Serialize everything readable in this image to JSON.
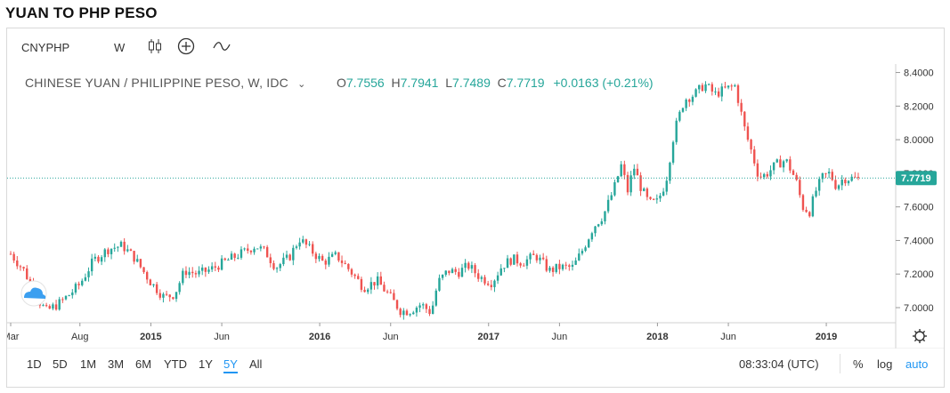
{
  "page_title": "YUAN TO PHP PESO",
  "toolbar": {
    "symbol": "CNYPHP",
    "interval": "W",
    "icons": [
      "candles-icon",
      "compare-add-icon",
      "indicators-icon"
    ]
  },
  "legend": {
    "name": "CHINESE YUAN / PHILIPPINE PESO, W, IDC",
    "o_label": "O",
    "o": "7.7556",
    "h_label": "H",
    "h": "7.7941",
    "l_label": "L",
    "l": "7.7489",
    "c_label": "C",
    "c": "7.7719",
    "change": "+0.0163 (+0.21%)"
  },
  "price_tag": "7.7719",
  "bottom": {
    "ranges": [
      "1D",
      "5D",
      "1M",
      "3M",
      "6M",
      "YTD",
      "1Y",
      "5Y",
      "All"
    ],
    "active_range": "5Y",
    "clock": "08:33:04 (UTC)",
    "options": [
      "%",
      "log",
      "auto"
    ],
    "active_option": "auto"
  },
  "colors": {
    "up": "#26a69a",
    "down": "#ef5350",
    "accent": "#2196f3",
    "last_line": "#26a69a"
  },
  "chart_data": {
    "type": "candlestick",
    "title": "CHINESE YUAN / PHILIPPINE PESO, W, IDC",
    "ylim": [
      6.91,
      8.44
    ],
    "yticks": [
      "8.4000",
      "8.2000",
      "8.0000",
      "7.8000",
      "7.6000",
      "7.4000",
      "7.2000",
      "7.0000"
    ],
    "ytick_values": [
      8.4,
      8.2,
      8.0,
      7.8,
      7.6,
      7.4,
      7.2,
      7.0
    ],
    "x_labels": [
      "Mar",
      "Aug",
      "2015",
      "Jun",
      "2016",
      "Jun",
      "2017",
      "Jun",
      "2018",
      "Jun",
      "2019"
    ],
    "x_label_years": [
      2014.17,
      2014.58,
      2015.0,
      2015.42,
      2016.0,
      2016.42,
      2017.0,
      2017.42,
      2018.0,
      2018.42,
      2019.0
    ],
    "x_range": [
      2014.17,
      2019.2
    ],
    "close_path": [
      [
        2014.17,
        7.32
      ],
      [
        2014.25,
        7.22
      ],
      [
        2014.33,
        7.05
      ],
      [
        2014.38,
        6.98
      ],
      [
        2014.45,
        7.02
      ],
      [
        2014.52,
        7.08
      ],
      [
        2014.58,
        7.14
      ],
      [
        2014.66,
        7.28
      ],
      [
        2014.75,
        7.35
      ],
      [
        2014.83,
        7.37
      ],
      [
        2014.9,
        7.3
      ],
      [
        2015.0,
        7.15
      ],
      [
        2015.08,
        7.06
      ],
      [
        2015.14,
        7.08
      ],
      [
        2015.2,
        7.22
      ],
      [
        2015.28,
        7.2
      ],
      [
        2015.36,
        7.23
      ],
      [
        2015.45,
        7.28
      ],
      [
        2015.55,
        7.33
      ],
      [
        2015.62,
        7.37
      ],
      [
        2015.68,
        7.33
      ],
      [
        2015.74,
        7.24
      ],
      [
        2015.82,
        7.3
      ],
      [
        2015.88,
        7.41
      ],
      [
        2015.94,
        7.35
      ],
      [
        2016.02,
        7.27
      ],
      [
        2016.1,
        7.31
      ],
      [
        2016.18,
        7.22
      ],
      [
        2016.26,
        7.12
      ],
      [
        2016.34,
        7.16
      ],
      [
        2016.42,
        7.06
      ],
      [
        2016.48,
        6.98
      ],
      [
        2016.53,
        6.98
      ],
      [
        2016.6,
        7.02
      ],
      [
        2016.66,
        6.97
      ],
      [
        2016.7,
        7.15
      ],
      [
        2016.76,
        7.22
      ],
      [
        2016.82,
        7.21
      ],
      [
        2016.88,
        7.25
      ],
      [
        2016.95,
        7.18
      ],
      [
        2017.02,
        7.15
      ],
      [
        2017.08,
        7.25
      ],
      [
        2017.14,
        7.29
      ],
      [
        2017.2,
        7.27
      ],
      [
        2017.28,
        7.31
      ],
      [
        2017.36,
        7.22
      ],
      [
        2017.42,
        7.24
      ],
      [
        2017.5,
        7.24
      ],
      [
        2017.56,
        7.35
      ],
      [
        2017.62,
        7.48
      ],
      [
        2017.68,
        7.55
      ],
      [
        2017.74,
        7.7
      ],
      [
        2017.79,
        7.86
      ],
      [
        2017.82,
        7.68
      ],
      [
        2017.86,
        7.84
      ],
      [
        2017.9,
        7.72
      ],
      [
        2017.95,
        7.62
      ],
      [
        2018.0,
        7.63
      ],
      [
        2018.05,
        7.75
      ],
      [
        2018.1,
        8.05
      ],
      [
        2018.16,
        8.24
      ],
      [
        2018.22,
        8.27
      ],
      [
        2018.28,
        8.33
      ],
      [
        2018.34,
        8.27
      ],
      [
        2018.4,
        8.3
      ],
      [
        2018.46,
        8.32
      ],
      [
        2018.52,
        8.05
      ],
      [
        2018.56,
        7.92
      ],
      [
        2018.6,
        7.78
      ],
      [
        2018.64,
        7.79
      ],
      [
        2018.7,
        7.85
      ],
      [
        2018.76,
        7.88
      ],
      [
        2018.82,
        7.76
      ],
      [
        2018.86,
        7.6
      ],
      [
        2018.9,
        7.57
      ],
      [
        2018.94,
        7.7
      ],
      [
        2018.98,
        7.78
      ],
      [
        2019.02,
        7.8
      ],
      [
        2019.06,
        7.72
      ],
      [
        2019.1,
        7.77
      ]
    ],
    "last": {
      "open": 7.7556,
      "high": 7.7941,
      "low": 7.7489,
      "close": 7.7719
    }
  }
}
